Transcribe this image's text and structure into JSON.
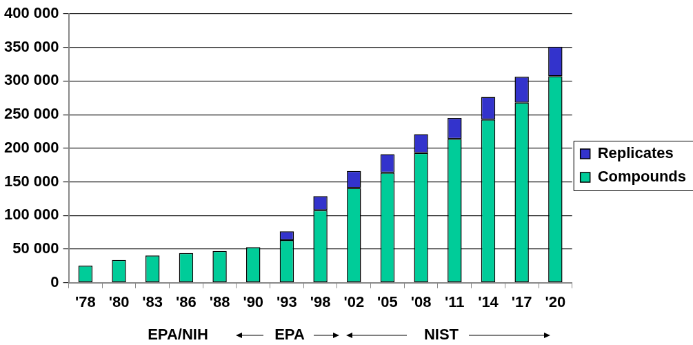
{
  "chart_data": {
    "type": "bar",
    "stacked": true,
    "categories": [
      "'78",
      "'80",
      "'83",
      "'86",
      "'88",
      "'90",
      "'93",
      "'98",
      "'02",
      "'05",
      "'08",
      "'11",
      "'14",
      "'17",
      "'20"
    ],
    "series": [
      {
        "name": "Compounds",
        "color": "#00cc99",
        "values": [
          25300,
          33800,
          40400,
          44000,
          47200,
          52800,
          63300,
          107700,
          140700,
          163600,
          192800,
          213900,
          242700,
          267700,
          307100
        ]
      },
      {
        "name": "Replicates",
        "color": "#3333cc",
        "values": [
          0,
          0,
          0,
          0,
          0,
          0,
          13000,
          21000,
          25500,
          27500,
          28000,
          31000,
          33500,
          38500,
          44000
        ]
      }
    ],
    "ylim": [
      0,
      400000
    ],
    "yticks": [
      0,
      {
        "value": 50000,
        "label": "50 000"
      },
      {
        "value": 100000,
        "label": "100 000"
      },
      {
        "value": 150000,
        "label": "150 000"
      },
      {
        "value": 200000,
        "label": "200 000"
      },
      {
        "value": 250000,
        "label": "250 000"
      },
      {
        "value": 300000,
        "label": "300 000"
      },
      {
        "value": 350000,
        "label": "350 000"
      },
      {
        "value": 400000,
        "label": "400 000"
      }
    ],
    "grid": "y",
    "legend": "right",
    "annotations": [
      "EPA/NIH",
      "EPA",
      "NIST"
    ]
  }
}
